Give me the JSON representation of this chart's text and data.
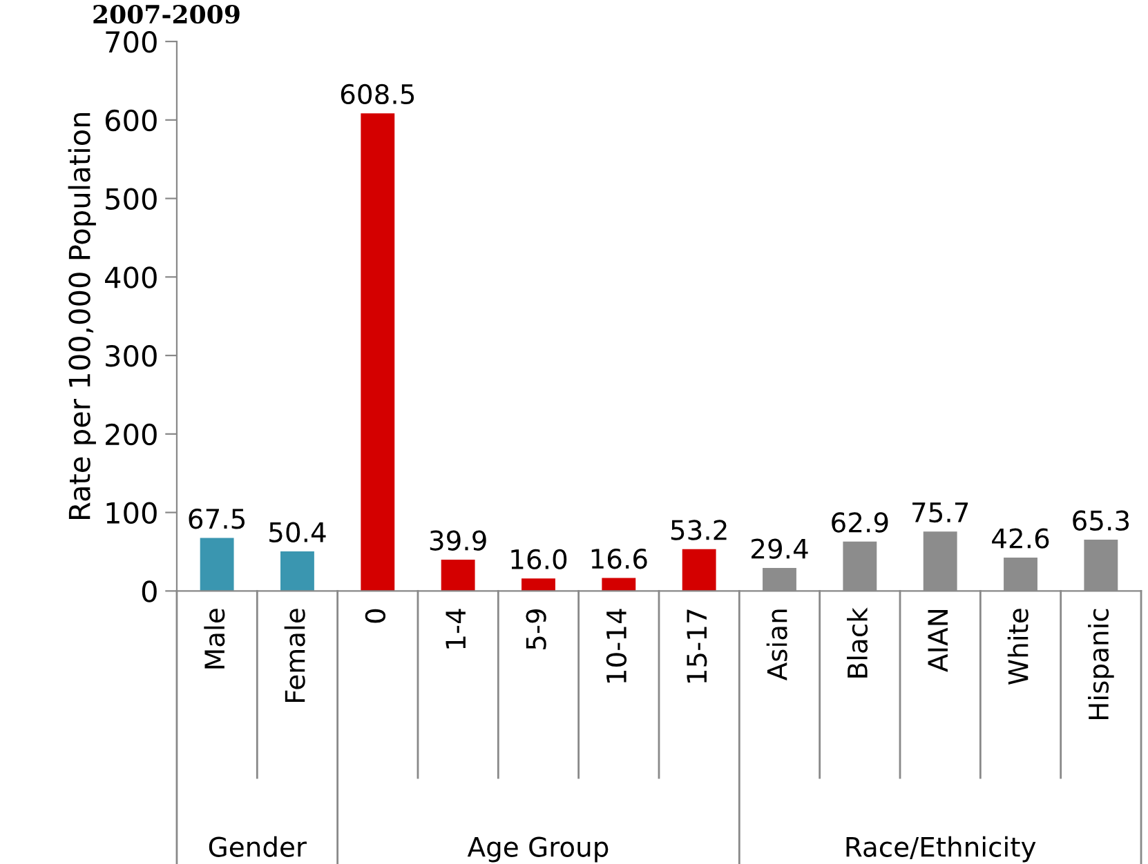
{
  "chart_data": {
    "type": "bar",
    "title": "2007-2009",
    "ylabel": "Rate per 100,000 Population",
    "categories": [
      "Male",
      "Female",
      "0",
      "1-4",
      "5-9",
      "10-14",
      "15-17",
      "Asian",
      "Black",
      "AIAN",
      "White",
      "Hispanic"
    ],
    "values": [
      67.5,
      50.4,
      608.5,
      39.9,
      16.0,
      16.6,
      53.2,
      29.4,
      62.9,
      75.7,
      42.6,
      65.3
    ],
    "value_labels": [
      "67.5",
      "50.4",
      "608.5",
      "39.9",
      "16.0",
      "16.6",
      "53.2",
      "29.4",
      "62.9",
      "75.7",
      "42.6",
      "65.3"
    ],
    "colors": [
      "#3a96b0",
      "#3a96b0",
      "#d40000",
      "#d40000",
      "#d40000",
      "#d40000",
      "#d40000",
      "#8c8c8c",
      "#8c8c8c",
      "#8c8c8c",
      "#8c8c8c",
      "#8c8c8c"
    ],
    "annotations": [
      "Gender",
      "Age Group",
      "Race/Ethnicity"
    ],
    "ylim": [
      0,
      700
    ],
    "yticks": [
      0,
      100,
      200,
      300,
      400,
      500,
      600,
      700
    ],
    "grid": false,
    "legend": false
  }
}
